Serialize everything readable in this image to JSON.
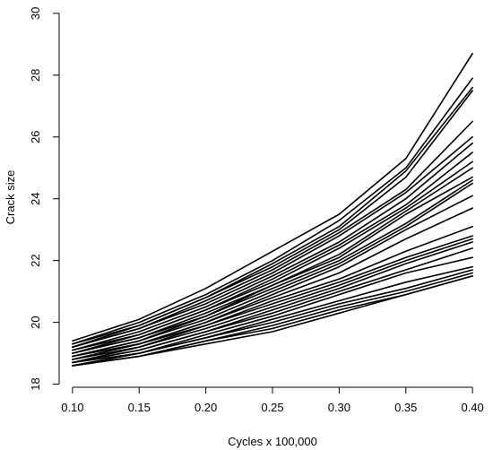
{
  "chart_data": {
    "type": "line",
    "title": "",
    "xlabel": "Cycles x 100,000",
    "ylabel": "Crack size",
    "x": [
      0.1,
      0.15,
      0.2,
      0.25,
      0.3,
      0.35,
      0.4
    ],
    "x_tick_labels": [
      "0.10",
      "0.15",
      "0.20",
      "0.25",
      "0.30",
      "0.35",
      "0.40"
    ],
    "y_ticks": [
      18,
      20,
      22,
      24,
      26,
      28,
      30
    ],
    "y_tick_labels": [
      "18",
      "20",
      "22",
      "24",
      "26",
      "28",
      "30"
    ],
    "xlim": [
      0.09,
      0.41
    ],
    "ylim": [
      17.9,
      30.2
    ],
    "grid": false,
    "line_color": "#000000",
    "series": [
      {
        "values": [
          19.4,
          20.1,
          21.1,
          22.3,
          23.5,
          25.3,
          28.7
        ]
      },
      {
        "values": [
          19.3,
          20.0,
          20.9,
          22.0,
          23.3,
          25.0,
          27.9
        ]
      },
      {
        "values": [
          19.3,
          19.9,
          20.8,
          21.9,
          23.1,
          24.9,
          27.6
        ]
      },
      {
        "values": [
          19.2,
          19.9,
          20.8,
          21.8,
          23.0,
          24.7,
          27.5
        ]
      },
      {
        "values": [
          19.2,
          19.8,
          20.7,
          21.7,
          22.9,
          24.3,
          26.5
        ]
      },
      {
        "values": [
          19.2,
          19.8,
          20.6,
          21.6,
          22.8,
          24.2,
          26.0
        ]
      },
      {
        "values": [
          19.1,
          19.7,
          20.5,
          21.5,
          22.6,
          24.0,
          25.8
        ]
      },
      {
        "values": [
          19.1,
          19.6,
          20.4,
          21.4,
          22.5,
          23.8,
          25.5
        ]
      },
      {
        "values": [
          19.0,
          19.6,
          20.4,
          21.3,
          22.4,
          23.7,
          25.2
        ]
      },
      {
        "values": [
          19.0,
          19.5,
          20.3,
          21.2,
          22.2,
          23.6,
          25.0
        ]
      },
      {
        "values": [
          19.0,
          19.5,
          20.2,
          21.2,
          22.1,
          23.5,
          24.7
        ]
      },
      {
        "values": [
          18.9,
          19.4,
          20.2,
          21.1,
          22.0,
          23.2,
          24.6
        ]
      },
      {
        "values": [
          18.9,
          19.4,
          20.1,
          21.0,
          21.9,
          23.1,
          24.5
        ]
      },
      {
        "values": [
          18.9,
          19.3,
          20.0,
          20.9,
          21.8,
          23.0,
          24.1
        ]
      },
      {
        "values": [
          18.8,
          19.3,
          20.0,
          20.8,
          21.6,
          22.7,
          23.7
        ]
      },
      {
        "values": [
          18.8,
          19.3,
          19.9,
          20.7,
          21.4,
          22.3,
          23.1
        ]
      },
      {
        "values": [
          18.8,
          19.2,
          19.9,
          20.6,
          21.3,
          22.1,
          22.8
        ]
      },
      {
        "values": [
          18.7,
          19.2,
          19.8,
          20.5,
          21.2,
          22.0,
          22.7
        ]
      },
      {
        "values": [
          18.7,
          19.1,
          19.7,
          20.4,
          21.1,
          21.9,
          22.6
        ]
      },
      {
        "values": [
          18.7,
          19.1,
          19.7,
          20.3,
          21.0,
          21.7,
          22.4
        ]
      },
      {
        "values": [
          18.7,
          19.0,
          19.6,
          20.2,
          20.9,
          21.6,
          22.1
        ]
      },
      {
        "values": [
          18.6,
          19.0,
          19.5,
          20.1,
          20.7,
          21.3,
          21.8
        ]
      },
      {
        "values": [
          18.6,
          19.0,
          19.5,
          20.0,
          20.6,
          21.1,
          21.7
        ]
      },
      {
        "values": [
          18.6,
          18.9,
          19.4,
          19.9,
          20.5,
          21.0,
          21.6
        ]
      },
      {
        "values": [
          18.6,
          18.9,
          19.4,
          19.8,
          20.4,
          20.9,
          21.5
        ]
      },
      {
        "values": [
          18.6,
          18.9,
          19.3,
          19.7,
          20.3,
          20.9,
          21.5
        ]
      }
    ]
  }
}
